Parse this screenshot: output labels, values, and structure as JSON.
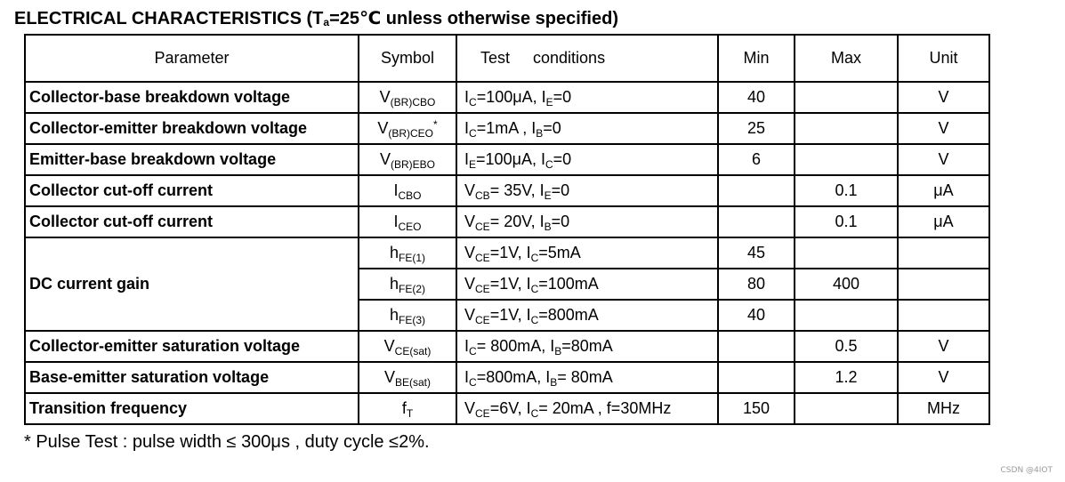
{
  "title": {
    "prefix": "ELECTRICAL CHARACTERISTICS (T",
    "sub": "a",
    "suffix": "=25℃ unless otherwise specified)"
  },
  "headers": {
    "parameter": "Parameter",
    "symbol": "Symbol",
    "test_word": "Test",
    "conditions_word": "conditions",
    "min": "Min",
    "max": "Max",
    "unit": "Unit"
  },
  "rows": [
    {
      "parameter": "Collector-base breakdown voltage",
      "sym_main": "V",
      "sym_sub": "(BR)CBO",
      "cond": [
        [
          "I",
          "C",
          "=100μA, "
        ],
        [
          "I",
          "E",
          "=0"
        ]
      ],
      "min": "40",
      "max": "",
      "unit": "V"
    },
    {
      "parameter": "Collector-emitter breakdown voltage",
      "sym_main": "V",
      "sym_sub": "(BR)CEO",
      "sym_sup": "*",
      "cond": [
        [
          "I",
          "C",
          "=1mA , "
        ],
        [
          "I",
          "B",
          "=0"
        ]
      ],
      "min": "25",
      "max": "",
      "unit": "V"
    },
    {
      "parameter": "Emitter-base breakdown voltage",
      "sym_main": "V",
      "sym_sub": "(BR)EBO",
      "cond": [
        [
          "I",
          "E",
          "=100μA, "
        ],
        [
          "I",
          "C",
          "=0"
        ]
      ],
      "min": "6",
      "max": "",
      "unit": "V"
    },
    {
      "parameter": "Collector cut-off current",
      "sym_main": "I",
      "sym_sub": "CBO",
      "cond": [
        [
          "V",
          "CB",
          "= 35V, "
        ],
        [
          "I",
          "E",
          "=0"
        ]
      ],
      "min": "",
      "max": "0.1",
      "unit": "μA"
    },
    {
      "parameter": "Collector cut-off current",
      "sym_main": "I",
      "sym_sub": "CEO",
      "cond": [
        [
          "V",
          "CE",
          "= 20V, "
        ],
        [
          "I",
          "B",
          "=0"
        ]
      ],
      "min": "",
      "max": "0.1",
      "unit": "μA"
    }
  ],
  "gain": {
    "parameter": "DC current gain",
    "rows": [
      {
        "sym_main": "h",
        "sym_sub": "FE(1)",
        "cond": [
          [
            "V",
            "CE",
            "=1V, "
          ],
          [
            "I",
            "C",
            "=5mA"
          ]
        ],
        "min": "45",
        "max": "",
        "unit": ""
      },
      {
        "sym_main": "h",
        "sym_sub": "FE(2)",
        "cond": [
          [
            "V",
            "CE",
            "=1V, "
          ],
          [
            "I",
            "C",
            "=100mA"
          ]
        ],
        "min": "80",
        "max": "400",
        "unit": ""
      },
      {
        "sym_main": "h",
        "sym_sub": "FE(3)",
        "cond": [
          [
            "V",
            "CE",
            "=1V, "
          ],
          [
            "I",
            "C",
            "=800mA"
          ]
        ],
        "min": "40",
        "max": "",
        "unit": ""
      }
    ]
  },
  "rows_after": [
    {
      "parameter": "Collector-emitter saturation voltage",
      "sym_main": "V",
      "sym_sub": "CE(sat)",
      "cond": [
        [
          "I",
          "C",
          "= 800mA, "
        ],
        [
          "I",
          "B",
          "=80mA"
        ]
      ],
      "min": "",
      "max": "0.5",
      "unit": "V"
    },
    {
      "parameter": "Base-emitter saturation voltage",
      "sym_main": "V",
      "sym_sub": "BE(sat)",
      "cond": [
        [
          "I",
          "C",
          "=800mA, "
        ],
        [
          "I",
          "B",
          "= 80mA"
        ]
      ],
      "min": "",
      "max": "1.2",
      "unit": "V"
    },
    {
      "parameter": "Transition frequency",
      "sym_main": "f",
      "sym_sub": "T",
      "cond": [
        [
          "V",
          "CE",
          "=6V, "
        ],
        [
          "I",
          "C",
          "= 20mA , f=30MHz"
        ]
      ],
      "min": "150",
      "max": "",
      "unit": "MHz"
    }
  ],
  "footnote": "* Pulse Test : pulse width ≤ 300μs , duty cycle ≤2%.",
  "watermark": "CSDN @4IOT"
}
